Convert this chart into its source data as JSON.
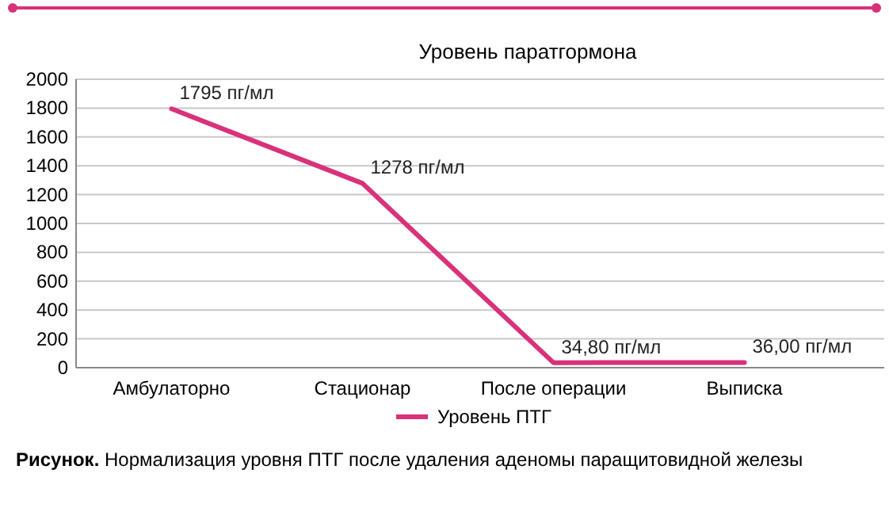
{
  "chart_data": {
    "type": "line",
    "title": "Уровень паратгормона",
    "categories": [
      "Амбулаторно",
      "Стационар",
      "После операции",
      "Выписка"
    ],
    "series": [
      {
        "name": "Уровень ПТГ",
        "color": "#d9317a",
        "values": [
          1795,
          1278,
          34.8,
          36
        ],
        "value_labels": [
          "1795 пг/мл",
          "1278 пг/мл",
          "34,80 пг/мл",
          "36,00 пг/мл"
        ]
      }
    ],
    "ylim": [
      0,
      2000
    ],
    "yticks": [
      0,
      200,
      400,
      600,
      800,
      1000,
      1200,
      1400,
      1600,
      1800,
      2000
    ],
    "grid": "y",
    "legend": "bottom",
    "marker": "none",
    "line_style": "solid",
    "annotations": [
      "Рисунок. Нормализация уровня ПТГ после удаления аденомы паращитовидной железы"
    ]
  }
}
